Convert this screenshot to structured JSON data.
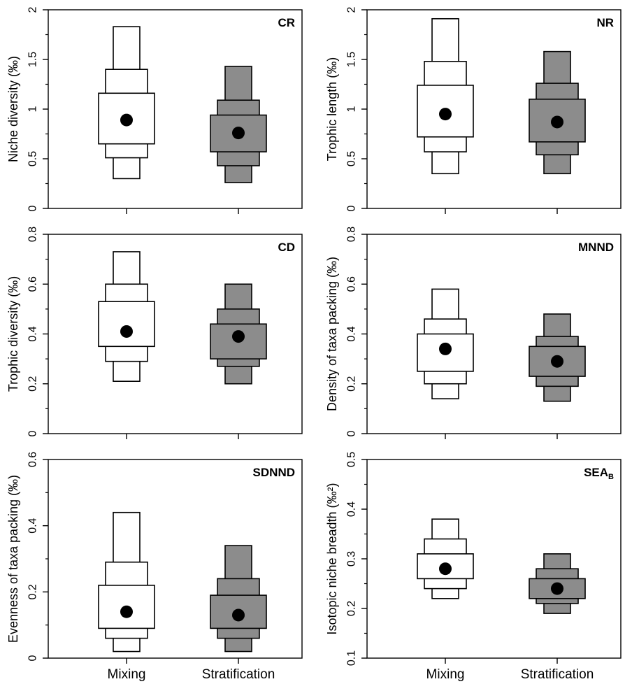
{
  "colors": {
    "mixing": "#ffffff",
    "stratification": "#8c8c8c",
    "mean_marker": "#000000",
    "axes": "#000000"
  },
  "x_labels": [
    "Mixing",
    "Stratification"
  ],
  "chart_data": [
    {
      "type": "boxplot",
      "title": "CR",
      "ylabel": "Niche diversity (‰)",
      "categories": [
        "Mixing",
        "Stratification"
      ],
      "ylim": [
        0,
        2
      ],
      "yticks": [
        0,
        0.5,
        1,
        1.5,
        2
      ],
      "ytick_labels": [
        "0",
        "0.5",
        "1",
        "1.5",
        "2"
      ],
      "series": [
        {
          "category": "Mixing",
          "mean": 0.89,
          "ci50": [
            0.65,
            1.16
          ],
          "ci75": [
            0.51,
            1.4
          ],
          "ci95": [
            0.3,
            1.83
          ]
        },
        {
          "category": "Stratification",
          "mean": 0.76,
          "ci50": [
            0.57,
            0.94
          ],
          "ci75": [
            0.43,
            1.09
          ],
          "ci95": [
            0.26,
            1.43
          ]
        }
      ]
    },
    {
      "type": "boxplot",
      "title": "NR",
      "ylabel": "Trophic length (‰)",
      "categories": [
        "Mixing",
        "Stratification"
      ],
      "ylim": [
        0,
        2
      ],
      "yticks": [
        0,
        0.5,
        1,
        1.5,
        2
      ],
      "ytick_labels": [
        "0",
        "0.5",
        "1",
        "1.5",
        "2"
      ],
      "series": [
        {
          "category": "Mixing",
          "mean": 0.95,
          "ci50": [
            0.72,
            1.24
          ],
          "ci75": [
            0.57,
            1.48
          ],
          "ci95": [
            0.35,
            1.91
          ]
        },
        {
          "category": "Stratification",
          "mean": 0.87,
          "ci50": [
            0.67,
            1.1
          ],
          "ci75": [
            0.54,
            1.26
          ],
          "ci95": [
            0.35,
            1.58
          ]
        }
      ]
    },
    {
      "type": "boxplot",
      "title": "CD",
      "ylabel": "Trophic diversity (‰)",
      "categories": [
        "Mixing",
        "Stratification"
      ],
      "ylim": [
        0,
        0.8
      ],
      "yticks": [
        0,
        0.2,
        0.4,
        0.6,
        0.8
      ],
      "ytick_labels": [
        "0",
        "0.2",
        "0.4",
        "0.6",
        "0.8"
      ],
      "series": [
        {
          "category": "Mixing",
          "mean": 0.41,
          "ci50": [
            0.35,
            0.53
          ],
          "ci75": [
            0.29,
            0.6
          ],
          "ci95": [
            0.21,
            0.73
          ]
        },
        {
          "category": "Stratification",
          "mean": 0.39,
          "ci50": [
            0.3,
            0.44
          ],
          "ci75": [
            0.27,
            0.5
          ],
          "ci95": [
            0.2,
            0.6
          ]
        }
      ]
    },
    {
      "type": "boxplot",
      "title": "MNND",
      "ylabel": "Density of taxa packing (‰)",
      "categories": [
        "Mixing",
        "Stratification"
      ],
      "ylim": [
        0,
        0.8
      ],
      "yticks": [
        0,
        0.2,
        0.4,
        0.6,
        0.8
      ],
      "ytick_labels": [
        "0",
        "0.2",
        "0.4",
        "0.6",
        "0.8"
      ],
      "series": [
        {
          "category": "Mixing",
          "mean": 0.34,
          "ci50": [
            0.25,
            0.4
          ],
          "ci75": [
            0.2,
            0.46
          ],
          "ci95": [
            0.14,
            0.58
          ]
        },
        {
          "category": "Stratification",
          "mean": 0.29,
          "ci50": [
            0.23,
            0.35
          ],
          "ci75": [
            0.19,
            0.39
          ],
          "ci95": [
            0.13,
            0.48
          ]
        }
      ]
    },
    {
      "type": "boxplot",
      "title": "SDNND",
      "ylabel": "Evenness of taxa packing (‰)",
      "categories": [
        "Mixing",
        "Stratification"
      ],
      "ylim": [
        0,
        0.6
      ],
      "yticks": [
        0,
        0.2,
        0.4,
        0.6
      ],
      "ytick_labels": [
        "0",
        "0.2",
        "0.4",
        "0.6"
      ],
      "series": [
        {
          "category": "Mixing",
          "mean": 0.14,
          "ci50": [
            0.09,
            0.22
          ],
          "ci75": [
            0.06,
            0.29
          ],
          "ci95": [
            0.02,
            0.44
          ]
        },
        {
          "category": "Stratification",
          "mean": 0.13,
          "ci50": [
            0.09,
            0.19
          ],
          "ci75": [
            0.06,
            0.24
          ],
          "ci95": [
            0.02,
            0.34
          ]
        }
      ]
    },
    {
      "type": "boxplot",
      "title": "SEA",
      "title_subscript": "B",
      "ylabel": "Isotopic niche breadth (‰²)",
      "categories": [
        "Mixing",
        "Stratification"
      ],
      "ylim": [
        0.1,
        0.5
      ],
      "yticks": [
        0.1,
        0.2,
        0.3,
        0.4,
        0.5
      ],
      "ytick_labels": [
        "0.1",
        "0.2",
        "0.3",
        "0.4",
        "0.5"
      ],
      "series": [
        {
          "category": "Mixing",
          "mean": 0.28,
          "ci50": [
            0.26,
            0.31
          ],
          "ci75": [
            0.24,
            0.34
          ],
          "ci95": [
            0.22,
            0.38
          ]
        },
        {
          "category": "Stratification",
          "mean": 0.24,
          "ci50": [
            0.22,
            0.26
          ],
          "ci75": [
            0.21,
            0.28
          ],
          "ci95": [
            0.19,
            0.31
          ]
        }
      ]
    }
  ]
}
